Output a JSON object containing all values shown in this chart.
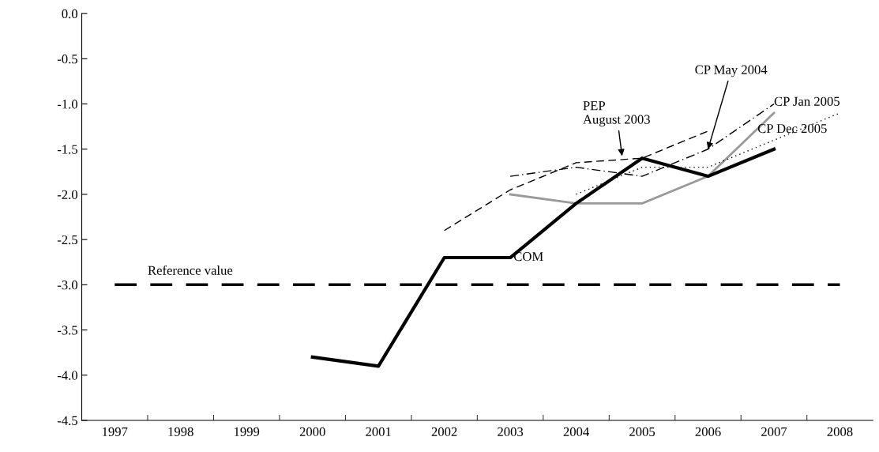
{
  "chart_data": {
    "type": "line",
    "categories": [
      "1997",
      "1998",
      "1999",
      "2000",
      "2001",
      "2002",
      "2003",
      "2004",
      "2005",
      "2006",
      "2007",
      "2008"
    ],
    "series": [
      {
        "color": "#000000",
        "line_style": "dashed",
        "values": [
          null,
          null,
          null,
          null,
          null,
          -2.4,
          -1.95,
          -1.65,
          -1.6,
          -1.3,
          null,
          null
        ]
      },
      {
        "color": "#000000",
        "line_style": "dashdot",
        "values": [
          null,
          null,
          null,
          null,
          null,
          null,
          -1.8,
          -1.7,
          -1.8,
          -1.5,
          -1.0,
          null
        ]
      },
      {
        "color": "#999999",
        "line_style": "solid",
        "values": [
          null,
          null,
          null,
          null,
          null,
          null,
          -2.0,
          -2.1,
          -2.1,
          -1.8,
          -1.1,
          null
        ]
      },
      {
        "color": "#000000",
        "line_style": "dotted",
        "values": [
          null,
          null,
          null,
          null,
          null,
          null,
          null,
          -2.0,
          -1.7,
          -1.7,
          -1.4,
          -1.1
        ]
      },
      {
        "color": "#000000",
        "line_style": "solid",
        "values": [
          null,
          null,
          null,
          -3.8,
          -3.9,
          -2.7,
          -2.7,
          -2.1,
          -1.6,
          -1.8,
          -1.5,
          null
        ]
      }
    ],
    "ylim": [
      -4.5,
      0.0
    ],
    "yticks": [
      {
        "value": 0.0,
        "label": "0.0"
      },
      {
        "value": -0.5,
        "label": "-0.5"
      },
      {
        "value": -1.0,
        "label": "-1.0"
      },
      {
        "value": -1.5,
        "label": "-1.5"
      },
      {
        "value": -2.0,
        "label": "-2.0"
      },
      {
        "value": -2.5,
        "label": "-2.5"
      },
      {
        "value": -3.0,
        "label": "-3.0"
      },
      {
        "value": -3.5,
        "label": "-3.5"
      },
      {
        "value": -4.0,
        "label": "-4.0"
      },
      {
        "value": -4.5,
        "label": "-4.5"
      }
    ],
    "ref_lines": [
      {
        "axis": "y",
        "value": -3.0,
        "label": "Reference value",
        "color": "#000000",
        "line_style": "dashed"
      }
    ],
    "annotations": [
      {
        "text": "COM",
        "x": "2003",
        "y": -2.7
      },
      {
        "text": "PEP\nAugust 2003",
        "x": "2004",
        "y": -1.65
      },
      {
        "text": "CP May 2004",
        "x": "2006",
        "y": -1.5
      },
      {
        "text": "CP Jan 2005",
        "x": "2007",
        "y": -1.1
      },
      {
        "text": "CP Dec 2005",
        "x": "2007",
        "y": -1.4
      }
    ],
    "grid": false,
    "legend": false
  }
}
